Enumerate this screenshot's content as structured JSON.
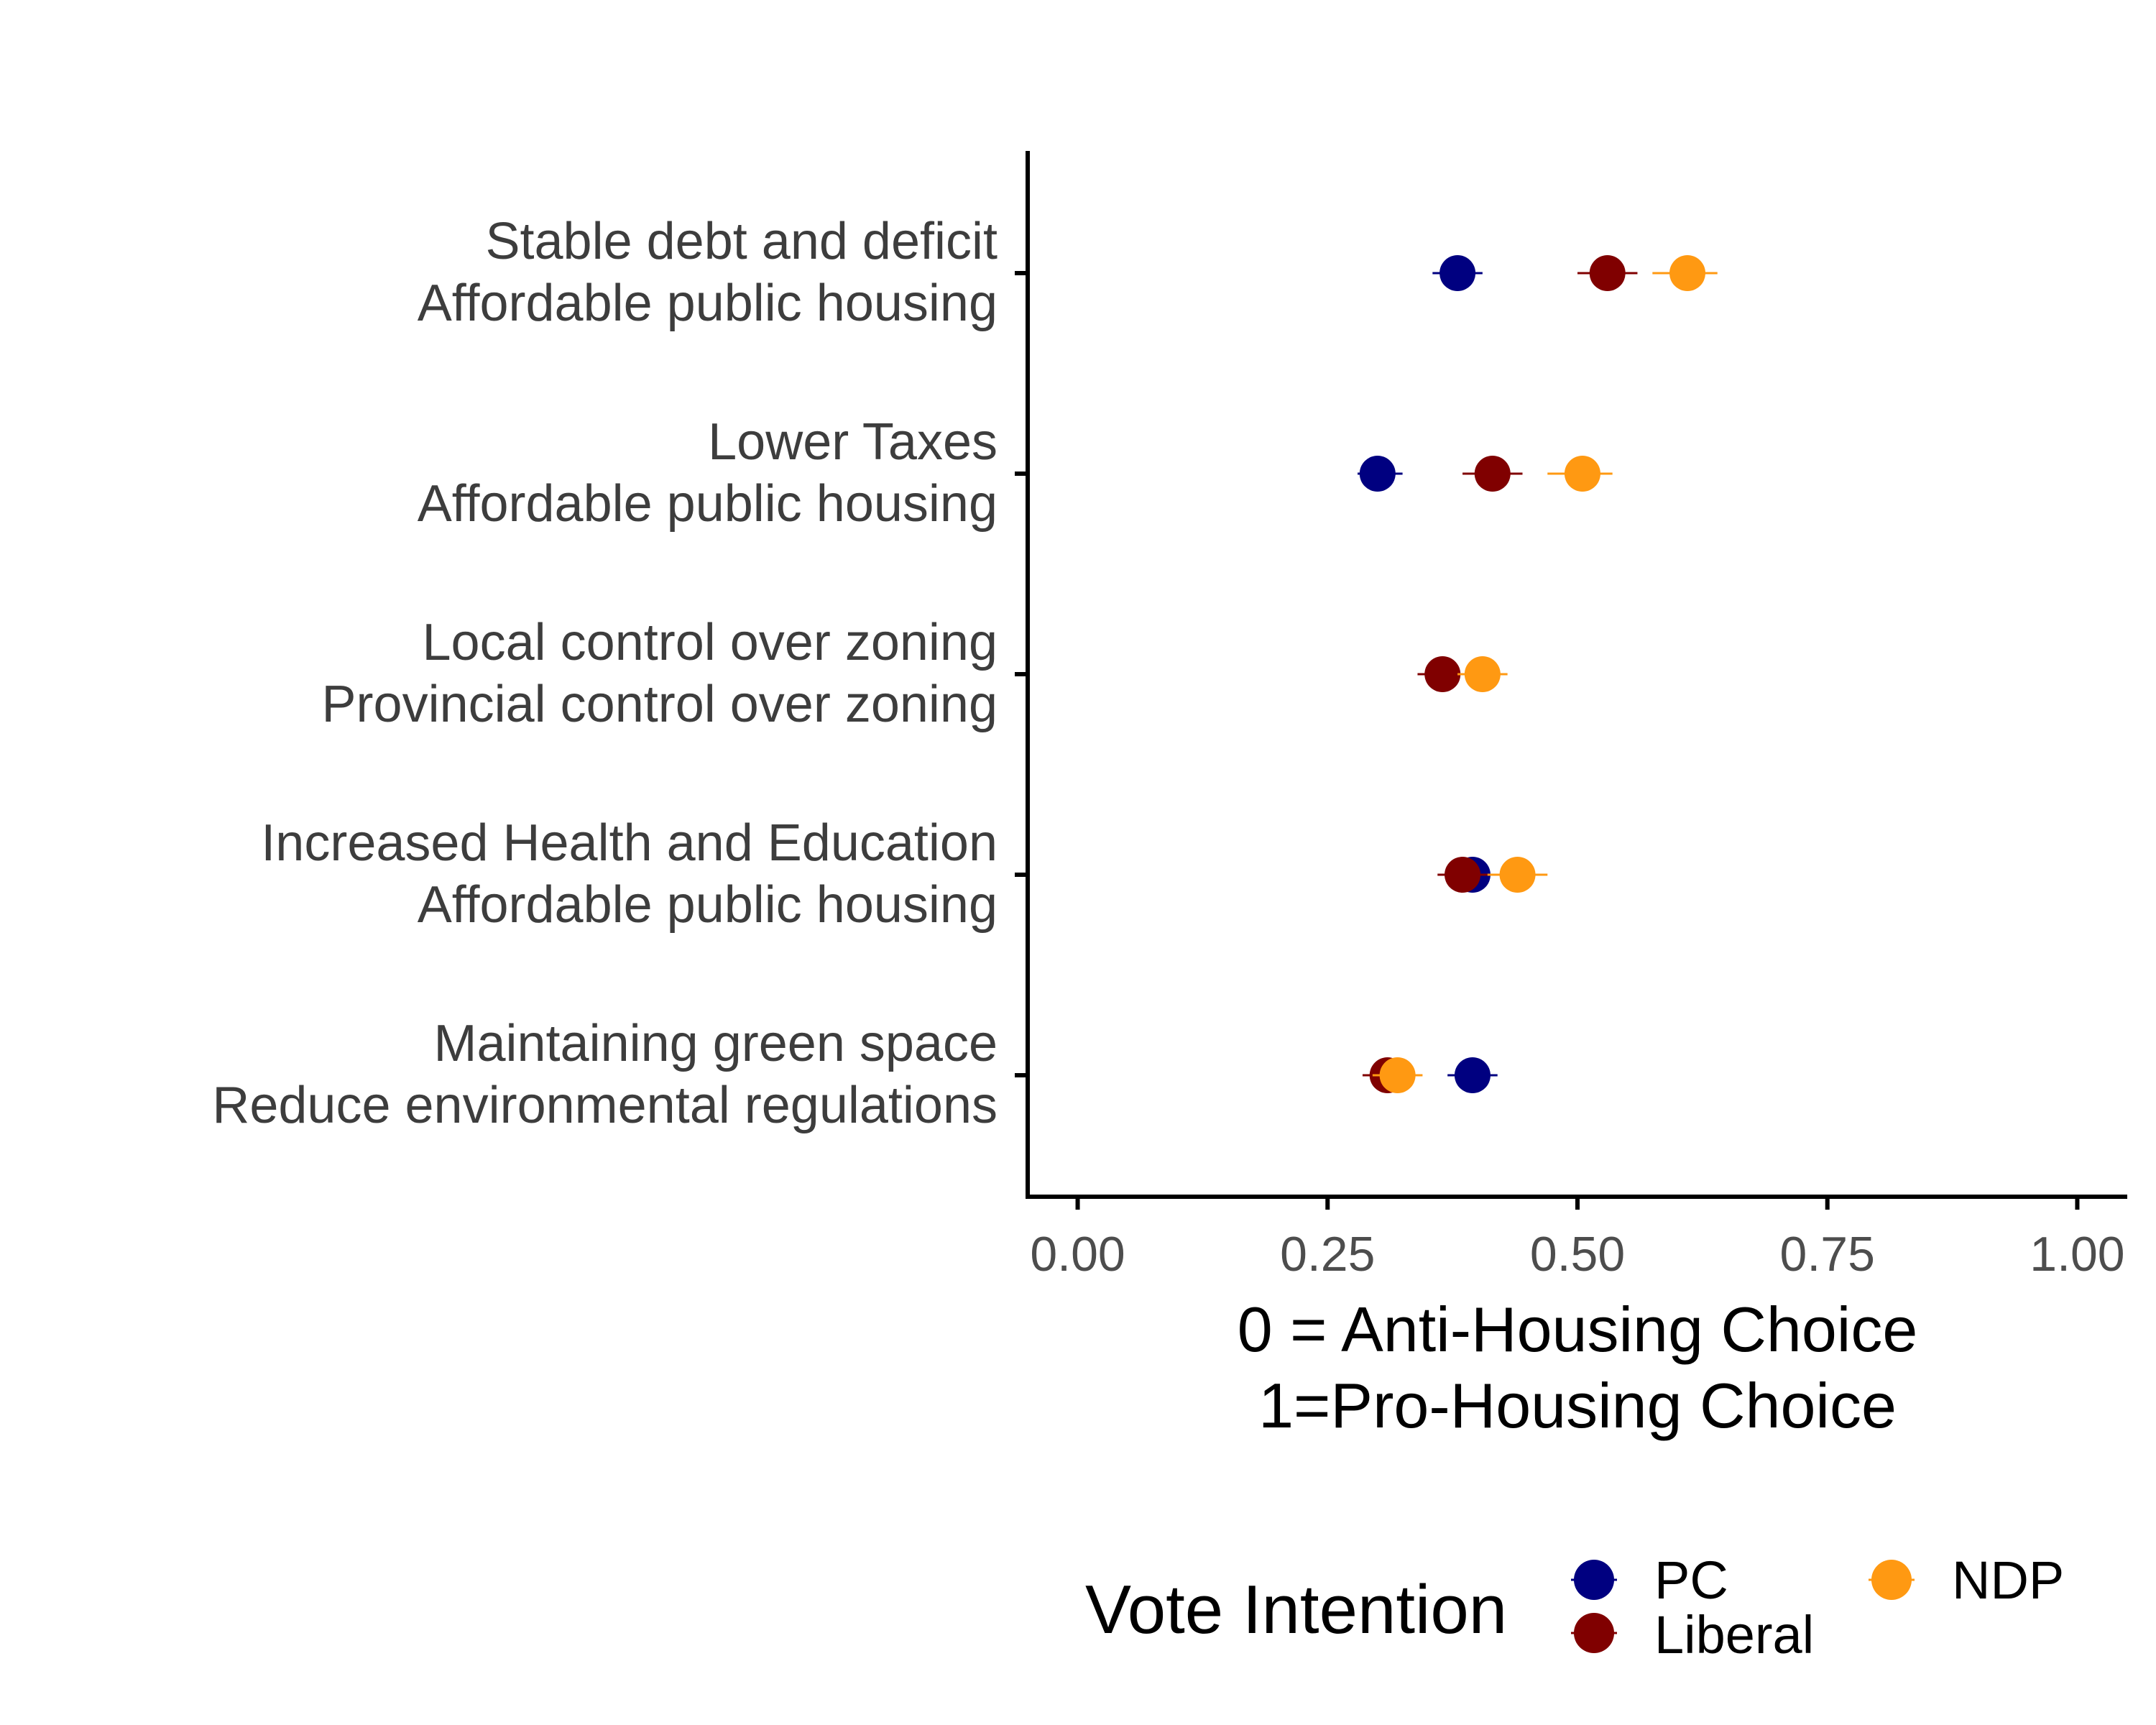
{
  "chart_data": {
    "type": "scatter",
    "subtype": "dot-and-whisker",
    "categories": [
      [
        "Stable debt and deficit",
        "Affordable public housing"
      ],
      [
        "Lower Taxes",
        "Affordable public housing"
      ],
      [
        "Local control over zoning",
        "Provincial control over zoning"
      ],
      [
        "Increased Health and Education",
        "Affordable public housing"
      ],
      [
        "Maintaining green space",
        "Reduce environmental regulations"
      ]
    ],
    "xlabel": [
      "0 = Anti-Housing Choice",
      "1=Pro-Housing Choice"
    ],
    "xlim": [
      -0.05,
      1.05
    ],
    "xticks": [
      0,
      0.25,
      0.5,
      0.75,
      1
    ],
    "xtick_labels": [
      "0.00",
      "0.25",
      "0.50",
      "0.75",
      "1.00"
    ],
    "grid": false,
    "legend": {
      "title": "Vote Intention",
      "placement": "bottom",
      "items": [
        "PC",
        "Liberal",
        "NDP"
      ]
    },
    "series": [
      {
        "name": "PC",
        "color": "#000080",
        "values": [
          0.38,
          0.3,
          null,
          0.395,
          0.395
        ],
        "lower": [
          0.355,
          0.28,
          null,
          0.37,
          0.37
        ],
        "upper": [
          0.405,
          0.325,
          null,
          0.42,
          0.42
        ]
      },
      {
        "name": "Liberal",
        "color": "#800000",
        "values": [
          0.53,
          0.415,
          0.365,
          0.385,
          0.31
        ],
        "lower": [
          0.5,
          0.385,
          0.34,
          0.36,
          0.285
        ],
        "upper": [
          0.56,
          0.445,
          0.39,
          0.41,
          0.335
        ]
      },
      {
        "name": "NDP",
        "color": "#FF9912",
        "values": [
          0.61,
          0.505,
          0.405,
          0.44,
          0.32
        ],
        "lower": [
          0.575,
          0.47,
          0.38,
          0.41,
          0.295
        ],
        "upper": [
          0.64,
          0.535,
          0.43,
          0.47,
          0.345
        ]
      }
    ]
  }
}
